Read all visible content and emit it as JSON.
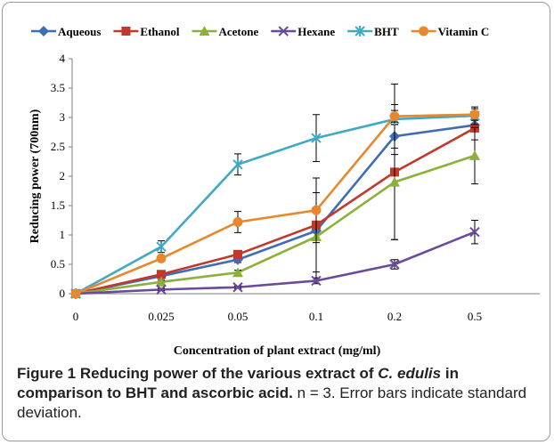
{
  "chart_data": {
    "type": "line",
    "x": [
      "0",
      "0.025",
      "0.05",
      "0.1",
      "0.2",
      "0.5"
    ],
    "xlabel": "Concentration of plant extract (mg/ml)",
    "ylabel": "Reducing power (700nm)",
    "ylim": [
      0,
      4
    ],
    "yticks": [
      "0",
      "0.5",
      "1",
      "1.5",
      "2",
      "2.5",
      "3",
      "3.5",
      "4"
    ],
    "grid": false,
    "legend": "top",
    "series": [
      {
        "name": "Aqueous",
        "color": "#3e6db3",
        "marker": "diamond",
        "values": [
          0,
          0.3,
          0.58,
          1.07,
          2.68,
          2.87
        ],
        "err": [
          0,
          0.04,
          0.05,
          0.12,
          0.2,
          0.1
        ]
      },
      {
        "name": "Ethanol",
        "color": "#c0392b",
        "marker": "square",
        "values": [
          0,
          0.33,
          0.67,
          1.17,
          2.07,
          2.82
        ],
        "err": [
          0,
          0.04,
          0.06,
          0.8,
          1.15,
          0.2
        ]
      },
      {
        "name": "Acetone",
        "color": "#8db03a",
        "marker": "triangle",
        "values": [
          0,
          0.2,
          0.36,
          0.97,
          1.9,
          2.35
        ],
        "err": [
          0,
          0.03,
          0.04,
          0.75,
          0.98,
          0.48
        ]
      },
      {
        "name": "Hexane",
        "color": "#6a4a9b",
        "marker": "x",
        "values": [
          0,
          0.07,
          0.11,
          0.22,
          0.5,
          1.05
        ],
        "err": [
          0,
          0.02,
          0.02,
          0.05,
          0.08,
          0.2
        ]
      },
      {
        "name": "BHT",
        "color": "#42a9c2",
        "marker": "star",
        "values": [
          0,
          0.8,
          2.2,
          2.65,
          2.97,
          3.03
        ],
        "err": [
          0,
          0.1,
          0.18,
          0.4,
          0.6,
          0.15
        ]
      },
      {
        "name": "Vitamin C",
        "color": "#e8882c",
        "marker": "circle",
        "values": [
          0,
          0.6,
          1.22,
          1.42,
          3.02,
          3.05
        ],
        "err": [
          0,
          0.05,
          0.18,
          0.55,
          0.1,
          0.1
        ]
      }
    ]
  },
  "caption": {
    "figure_label": "Figure 1",
    "bold_before_italic": "Reducing power of the various extract of",
    "italic": "C. edulis",
    "bold_after_italic": "in comparison to BHT and ascorbic acid.",
    "plain": "n = 3. Error bars indicate standard deviation."
  }
}
